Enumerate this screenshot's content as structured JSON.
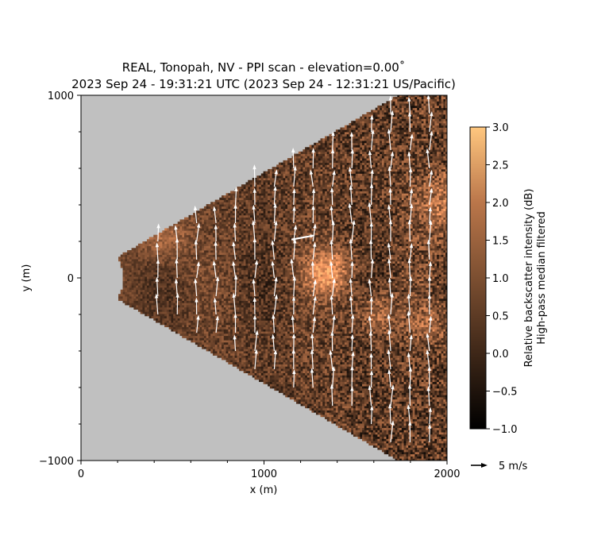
{
  "chart_data": {
    "type": "heatmap",
    "title_line1": "REAL, Tonopah, NV - PPI scan - elevation=0.00˚",
    "title_line2": "2023 Sep 24 - 19:31:21 UTC (2023 Sep 24 - 12:31:21 US/Pacific)",
    "xlabel": "x (m)",
    "ylabel": "y (m)",
    "xlim": [
      0,
      2000
    ],
    "ylim": [
      -1000,
      1000
    ],
    "x_ticks": [
      0,
      1000,
      2000
    ],
    "y_ticks": [
      -1000,
      0,
      1000
    ],
    "x_tick_labels": [
      "0",
      "1000",
      "2000"
    ],
    "y_tick_labels": [
      "−1000",
      "0",
      "1000"
    ],
    "sector": {
      "min_range_m": 230,
      "half_angle_deg": 30,
      "azimuth_center_deg": 90
    },
    "background_color": "#c0c0c0",
    "colorbar": {
      "label_line1": "Relative backscatter intensity (dB)",
      "label_line2": "High-pass median filtered",
      "range": [
        -1.0,
        3.0
      ],
      "ticks": [
        -1.0,
        -0.5,
        0.0,
        0.5,
        1.0,
        1.5,
        2.0,
        2.5,
        3.0
      ],
      "tick_labels": [
        "−1.0",
        "−0.5",
        "0.0",
        "0.5",
        "1.0",
        "1.5",
        "2.0",
        "2.5",
        "3.0"
      ],
      "colormap": "copper",
      "color_low": "#000000",
      "color_high": "#ffc77f"
    },
    "wind_vectors": {
      "reference_speed_mps": 5,
      "reference_label": "5 m/s",
      "dominant_direction": "north",
      "typical_speed_mps": 4.5,
      "anomalous_vectors": [
        {
          "x": 1150,
          "y": 210,
          "u": 5.5,
          "v": 1.0
        }
      ]
    }
  }
}
